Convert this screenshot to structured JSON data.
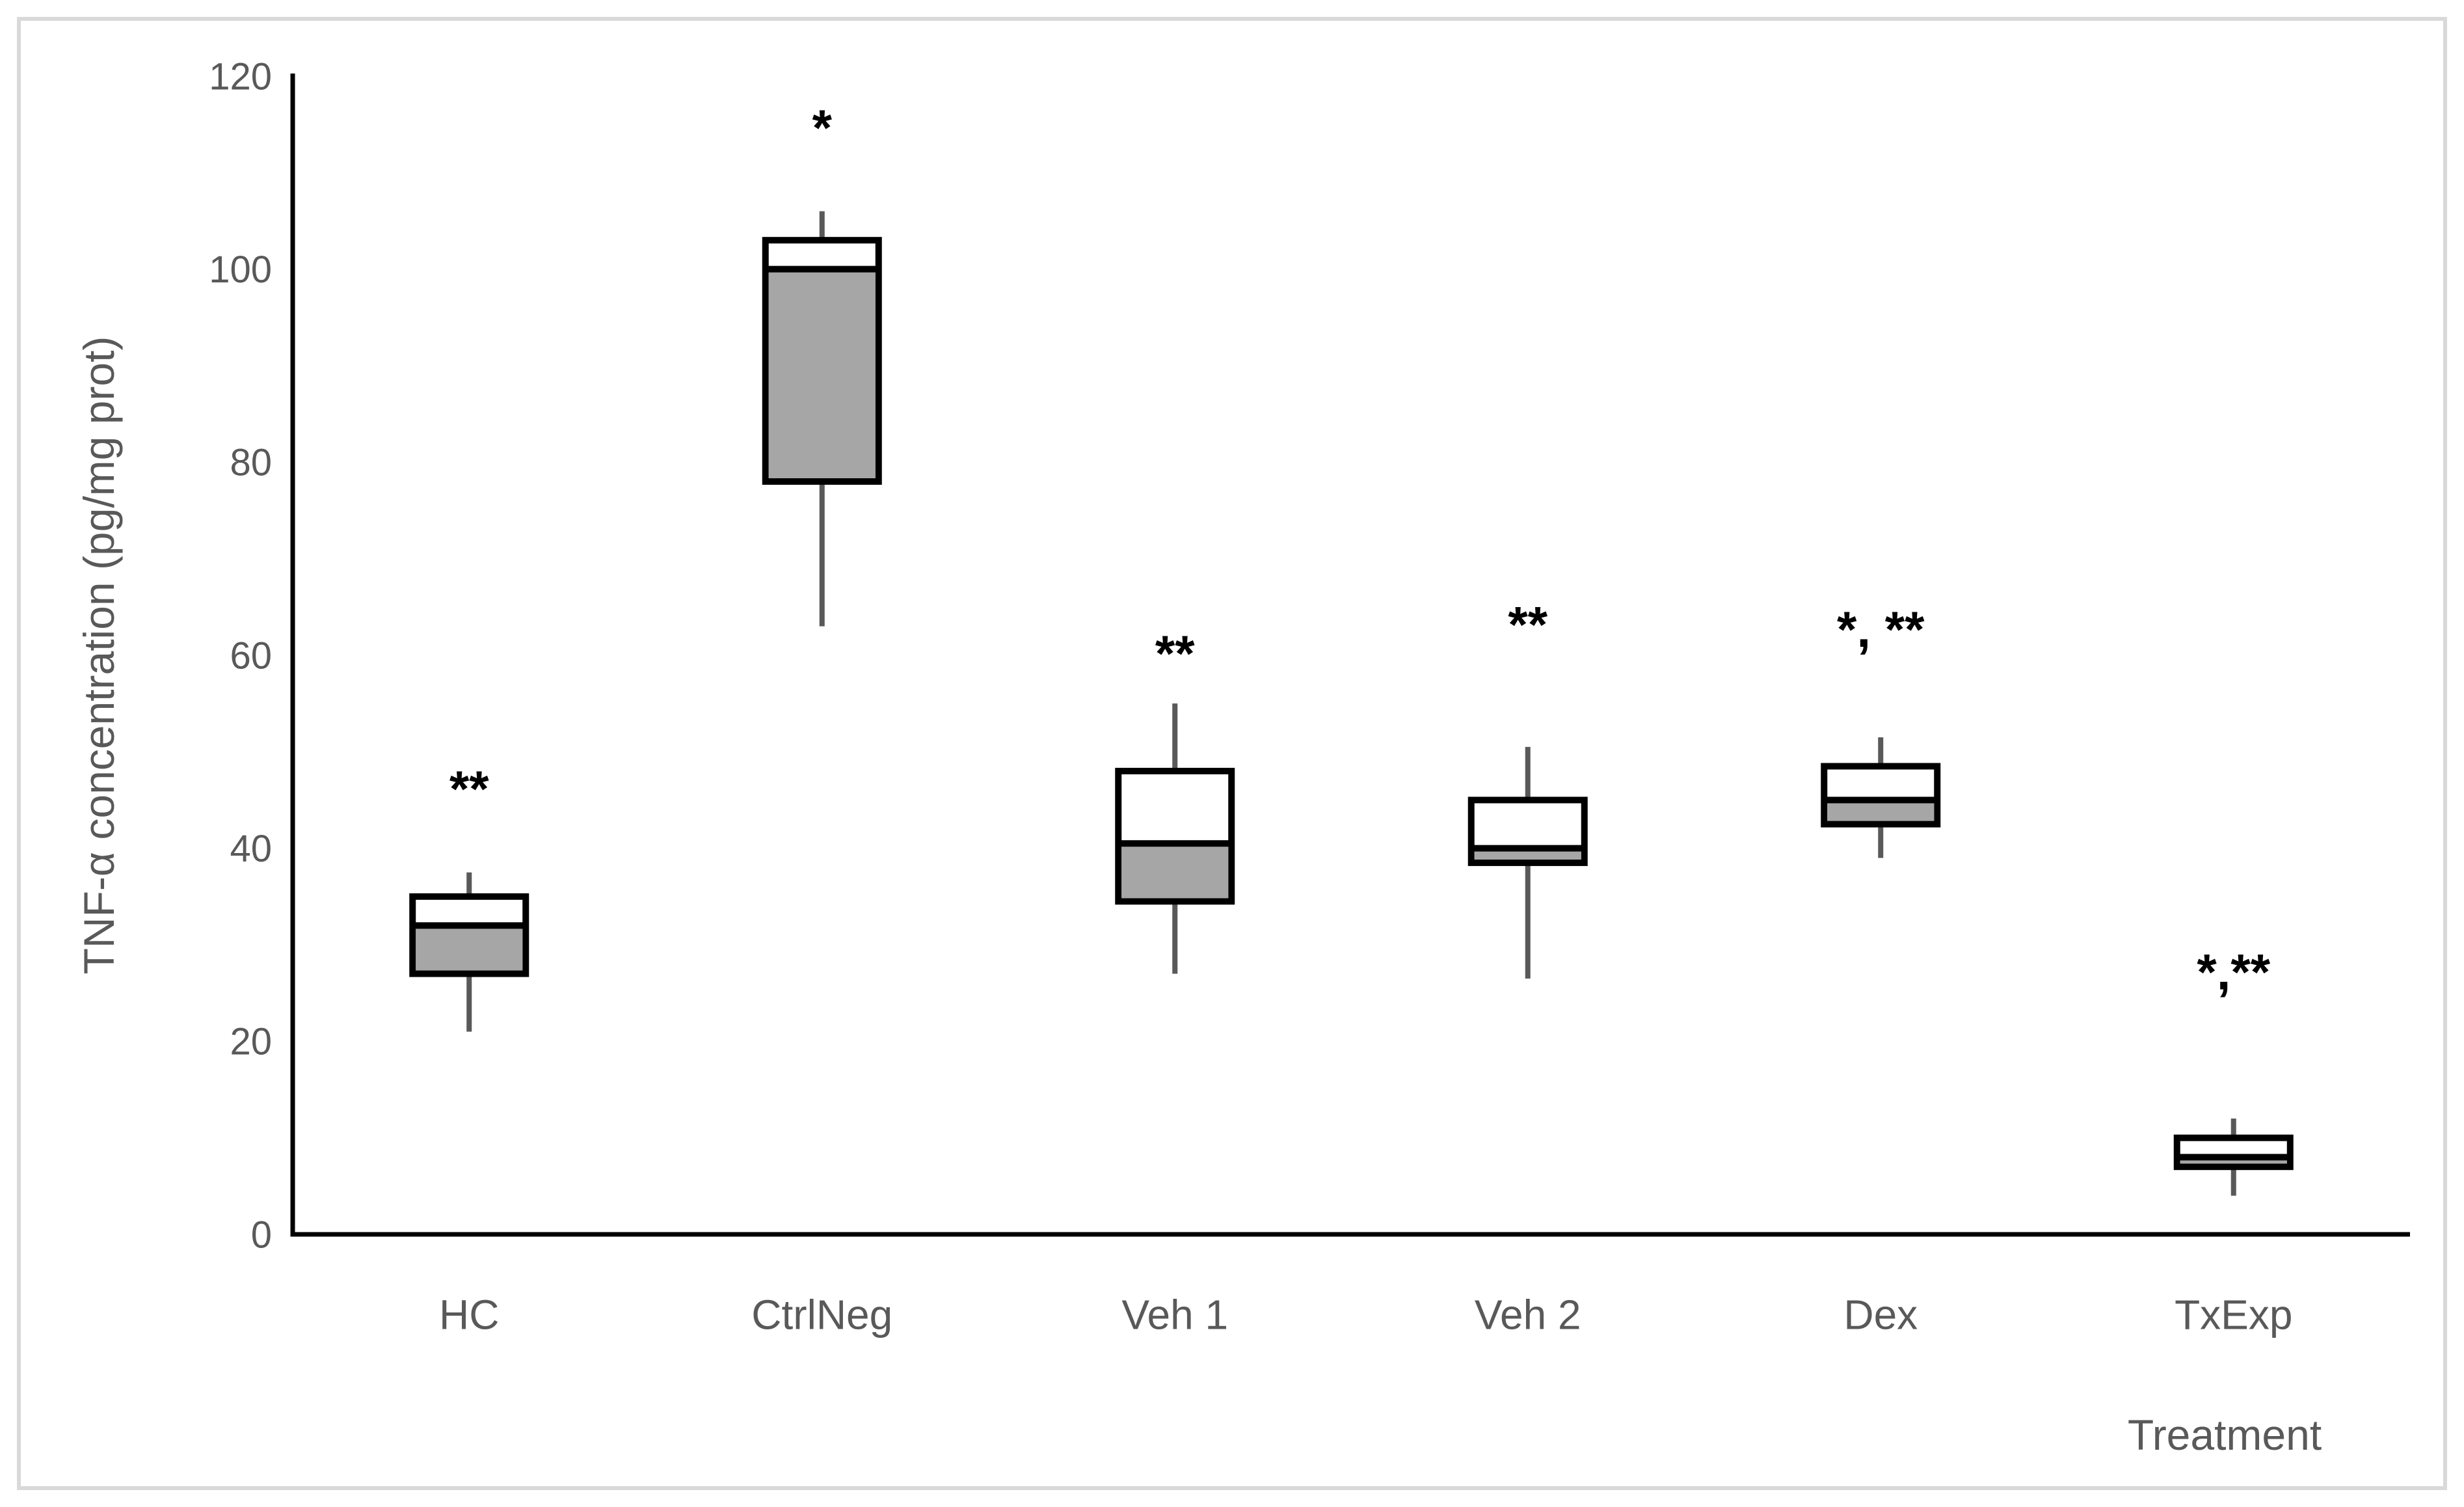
{
  "figure": {
    "background_color": "#ffffff",
    "border_color": "#d9d9d9"
  },
  "chart_data": {
    "type": "box",
    "title": "",
    "ylabel": "TNF-α concentration (pg/mg prot)",
    "xlabel": "Treatment",
    "ylim": [
      0,
      120
    ],
    "ytick_step": 20,
    "yticks": [
      0,
      20,
      40,
      60,
      80,
      100,
      120
    ],
    "grid": false,
    "legend": false,
    "box_style": "lower quartile-to-median shaded gray, median-to-upper-quartile white, whiskers without caps",
    "categories": [
      "HC",
      "CtrlNeg",
      "Veh 1",
      "Veh 2",
      "Dex",
      "TxExp"
    ],
    "groups": [
      {
        "label": "HC",
        "min": 21,
        "q1": 27,
        "median": 32,
        "q3": 35,
        "max": 37.5,
        "annotation": "**",
        "annotation_y": 47
      },
      {
        "label": "CtrlNeg",
        "min": 63,
        "q1": 78,
        "median": 100,
        "q3": 103,
        "max": 106,
        "annotation": "*",
        "annotation_y": 115.5
      },
      {
        "label": "Veh 1",
        "min": 27,
        "q1": 34.5,
        "median": 40.5,
        "q3": 48,
        "max": 55,
        "annotation": "**",
        "annotation_y": 61
      },
      {
        "label": "Veh 2",
        "min": 26.5,
        "q1": 38.5,
        "median": 40,
        "q3": 45,
        "max": 50.5,
        "annotation": "**",
        "annotation_y": 64
      },
      {
        "label": "Dex",
        "min": 39,
        "q1": 42.5,
        "median": 45,
        "q3": 48.5,
        "max": 51.5,
        "annotation": "*, **",
        "annotation_y": 63.5
      },
      {
        "label": "TxExp",
        "min": 4,
        "q1": 7,
        "median": 8,
        "q3": 10,
        "max": 12,
        "annotation": "*,**",
        "annotation_y": 28
      }
    ],
    "colors": {
      "box_fill_upper": "#ffffff",
      "box_fill_lower": "#a6a6a6",
      "box_border": "#000000",
      "median_line": "#000000",
      "whisker": "#595959",
      "axis_line": "#000000",
      "tick_label": "#595959",
      "axis_title": "#595959",
      "annotation": "#000000"
    }
  }
}
